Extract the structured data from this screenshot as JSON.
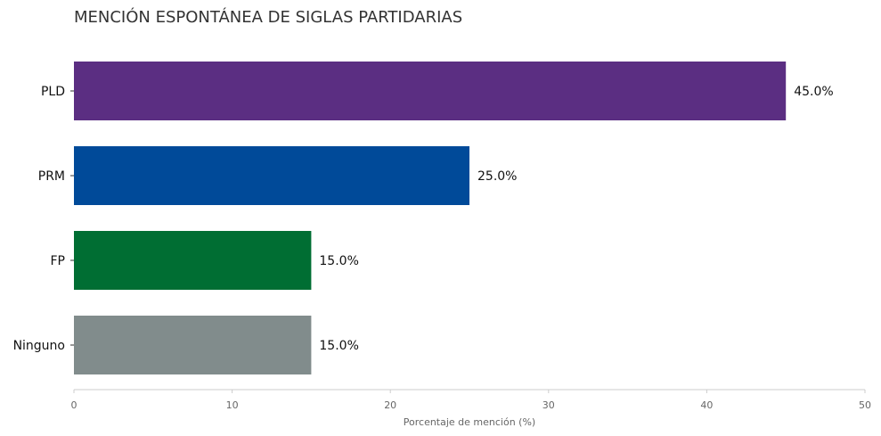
{
  "chart_data": {
    "type": "bar",
    "orientation": "horizontal",
    "title": "MENCIÓN ESPONTÁNEA DE SIGLAS PARTIDARIAS",
    "xlabel": "Porcentaje de mención (%)",
    "ylabel": "",
    "categories": [
      "PLD",
      "PRM",
      "FP",
      "Ninguno"
    ],
    "values": [
      45.0,
      25.0,
      15.0,
      15.0
    ],
    "value_labels": [
      "45.0%",
      "25.0%",
      "15.0%",
      "15.0%"
    ],
    "colors": [
      "#5b2e82",
      "#004a99",
      "#006e33",
      "#818c8c"
    ],
    "xlim": [
      0,
      50
    ],
    "xticks": [
      0,
      10,
      20,
      30,
      40,
      50
    ],
    "grid": false,
    "legend": "none"
  }
}
